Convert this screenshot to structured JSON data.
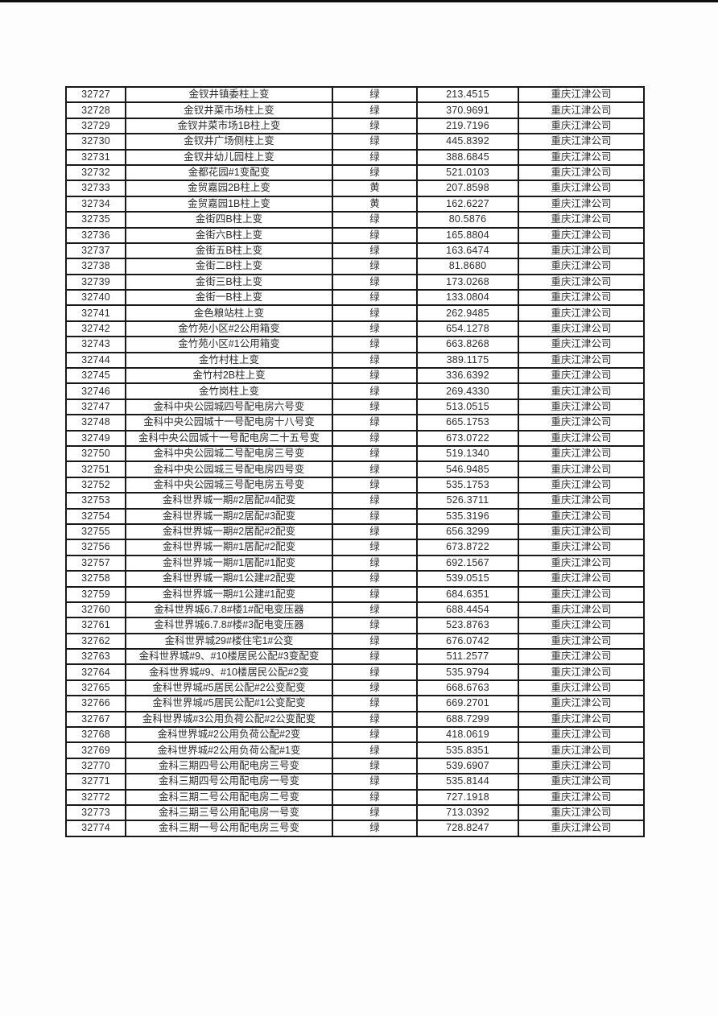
{
  "page": {
    "top_bar_color": "#0e0e0e",
    "background_color": "#ffffff"
  },
  "table": {
    "columns": [
      {
        "key": "id",
        "name": "cell-id"
      },
      {
        "key": "name",
        "name": "cell-name"
      },
      {
        "key": "status",
        "name": "cell-status"
      },
      {
        "key": "value",
        "name": "cell-value"
      },
      {
        "key": "company",
        "name": "cell-company"
      }
    ],
    "status_legend": {
      "green_label": "绿",
      "yellow_label": "黄"
    },
    "rows": [
      {
        "id": "32727",
        "name": "金钗井镇委柱上变",
        "status": "绿",
        "value": "213.4515",
        "company": "重庆江津公司"
      },
      {
        "id": "32728",
        "name": "金钗井菜市场柱上变",
        "status": "绿",
        "value": "370.9691",
        "company": "重庆江津公司"
      },
      {
        "id": "32729",
        "name": "金钗井菜市场1B柱上变",
        "status": "绿",
        "value": "219.7196",
        "company": "重庆江津公司"
      },
      {
        "id": "32730",
        "name": "金钗井广场侧柱上变",
        "status": "绿",
        "value": "445.8392",
        "company": "重庆江津公司"
      },
      {
        "id": "32731",
        "name": "金钗井幼儿园柱上变",
        "status": "绿",
        "value": "388.6845",
        "company": "重庆江津公司"
      },
      {
        "id": "32732",
        "name": "金都花园#1变配变",
        "status": "绿",
        "value": "521.0103",
        "company": "重庆江津公司"
      },
      {
        "id": "32733",
        "name": "金贸嘉园2B柱上变",
        "status": "黄",
        "value": "207.8598",
        "company": "重庆江津公司"
      },
      {
        "id": "32734",
        "name": "金贸嘉园1B柱上变",
        "status": "黄",
        "value": "162.6227",
        "company": "重庆江津公司"
      },
      {
        "id": "32735",
        "name": "金街四B柱上变",
        "status": "绿",
        "value": "80.5876",
        "company": "重庆江津公司"
      },
      {
        "id": "32736",
        "name": "金街六B柱上变",
        "status": "绿",
        "value": "165.8804",
        "company": "重庆江津公司"
      },
      {
        "id": "32737",
        "name": "金街五B柱上变",
        "status": "绿",
        "value": "163.6474",
        "company": "重庆江津公司"
      },
      {
        "id": "32738",
        "name": "金街二B柱上变",
        "status": "绿",
        "value": "81.8680",
        "company": "重庆江津公司"
      },
      {
        "id": "32739",
        "name": "金街三B柱上变",
        "status": "绿",
        "value": "173.0268",
        "company": "重庆江津公司"
      },
      {
        "id": "32740",
        "name": "金街一B柱上变",
        "status": "绿",
        "value": "133.0804",
        "company": "重庆江津公司"
      },
      {
        "id": "32741",
        "name": "金色粮站柱上变",
        "status": "绿",
        "value": "262.9485",
        "company": "重庆江津公司"
      },
      {
        "id": "32742",
        "name": "金竹苑小区#2公用箱变",
        "status": "绿",
        "value": "654.1278",
        "company": "重庆江津公司"
      },
      {
        "id": "32743",
        "name": "金竹苑小区#1公用箱变",
        "status": "绿",
        "value": "663.8268",
        "company": "重庆江津公司"
      },
      {
        "id": "32744",
        "name": "金竹村柱上变",
        "status": "绿",
        "value": "389.1175",
        "company": "重庆江津公司"
      },
      {
        "id": "32745",
        "name": "金竹村2B柱上变",
        "status": "绿",
        "value": "336.6392",
        "company": "重庆江津公司"
      },
      {
        "id": "32746",
        "name": "金竹岗柱上变",
        "status": "绿",
        "value": "269.4330",
        "company": "重庆江津公司"
      },
      {
        "id": "32747",
        "name": "金科中央公园城四号配电房六号变",
        "status": "绿",
        "value": "513.0515",
        "company": "重庆江津公司"
      },
      {
        "id": "32748",
        "name": "金科中央公园城十一号配电房十八号变",
        "status": "绿",
        "value": "665.1753",
        "company": "重庆江津公司"
      },
      {
        "id": "32749",
        "name": "金科中央公园城十一号配电房二十五号变",
        "status": "绿",
        "value": "673.0722",
        "company": "重庆江津公司"
      },
      {
        "id": "32750",
        "name": "金科中央公园城二号配电房三号变",
        "status": "绿",
        "value": "519.1340",
        "company": "重庆江津公司"
      },
      {
        "id": "32751",
        "name": "金科中央公园城三号配电房四号变",
        "status": "绿",
        "value": "546.9485",
        "company": "重庆江津公司"
      },
      {
        "id": "32752",
        "name": "金科中央公园城三号配电房五号变",
        "status": "绿",
        "value": "535.1753",
        "company": "重庆江津公司"
      },
      {
        "id": "32753",
        "name": "金科世界城一期#2居配#4配变",
        "status": "绿",
        "value": "526.3711",
        "company": "重庆江津公司"
      },
      {
        "id": "32754",
        "name": "金科世界城一期#2居配#3配变",
        "status": "绿",
        "value": "535.3196",
        "company": "重庆江津公司"
      },
      {
        "id": "32755",
        "name": "金科世界城一期#2居配#2配变",
        "status": "绿",
        "value": "656.3299",
        "company": "重庆江津公司"
      },
      {
        "id": "32756",
        "name": "金科世界城一期#1居配#2配变",
        "status": "绿",
        "value": "673.8722",
        "company": "重庆江津公司"
      },
      {
        "id": "32757",
        "name": "金科世界城一期#1居配#1配变",
        "status": "绿",
        "value": "692.1567",
        "company": "重庆江津公司"
      },
      {
        "id": "32758",
        "name": "金科世界城一期#1公建#2配变",
        "status": "绿",
        "value": "539.0515",
        "company": "重庆江津公司"
      },
      {
        "id": "32759",
        "name": "金科世界城一期#1公建#1配变",
        "status": "绿",
        "value": "684.6351",
        "company": "重庆江津公司"
      },
      {
        "id": "32760",
        "name": "金科世界城6.7.8#楼1#配电变压器",
        "status": "绿",
        "value": "688.4454",
        "company": "重庆江津公司"
      },
      {
        "id": "32761",
        "name": "金科世界城6.7.8#楼#3配电变压器",
        "status": "绿",
        "value": "523.8763",
        "company": "重庆江津公司"
      },
      {
        "id": "32762",
        "name": "金科世界城29#楼住宅1#公变",
        "status": "绿",
        "value": "676.0742",
        "company": "重庆江津公司"
      },
      {
        "id": "32763",
        "name": "金科世界城#9、#10楼居民公配#3变配变",
        "status": "绿",
        "value": "511.2577",
        "company": "重庆江津公司"
      },
      {
        "id": "32764",
        "name": "金科世界城#9、#10楼居民公配#2变",
        "status": "绿",
        "value": "535.9794",
        "company": "重庆江津公司"
      },
      {
        "id": "32765",
        "name": "金科世界城#5居民公配#2公变配变",
        "status": "绿",
        "value": "668.6763",
        "company": "重庆江津公司"
      },
      {
        "id": "32766",
        "name": "金科世界城#5居民公配#1公变配变",
        "status": "绿",
        "value": "669.2701",
        "company": "重庆江津公司"
      },
      {
        "id": "32767",
        "name": "金科世界城#3公用负荷公配#2公变配变",
        "status": "绿",
        "value": "688.7299",
        "company": "重庆江津公司"
      },
      {
        "id": "32768",
        "name": "金科世界城#2公用负荷公配#2变",
        "status": "绿",
        "value": "418.0619",
        "company": "重庆江津公司"
      },
      {
        "id": "32769",
        "name": "金科世界城#2公用负荷公配#1变",
        "status": "绿",
        "value": "535.8351",
        "company": "重庆江津公司"
      },
      {
        "id": "32770",
        "name": "金科三期四号公用配电房三号变",
        "status": "绿",
        "value": "539.6907",
        "company": "重庆江津公司"
      },
      {
        "id": "32771",
        "name": "金科三期四号公用配电房一号变",
        "status": "绿",
        "value": "535.8144",
        "company": "重庆江津公司"
      },
      {
        "id": "32772",
        "name": "金科三期二号公用配电房二号变",
        "status": "绿",
        "value": "727.1918",
        "company": "重庆江津公司"
      },
      {
        "id": "32773",
        "name": "金科三期三号公用配电房一号变",
        "status": "绿",
        "value": "713.0392",
        "company": "重庆江津公司"
      },
      {
        "id": "32774",
        "name": "金科三期一号公用配电房三号变",
        "status": "绿",
        "value": "728.8247",
        "company": "重庆江津公司"
      }
    ]
  }
}
